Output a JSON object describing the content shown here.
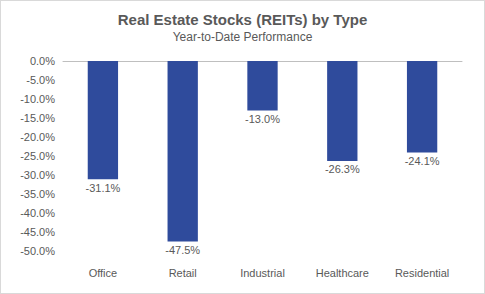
{
  "chart_data": {
    "type": "bar",
    "title": "Real Estate Stocks (REITs) by Type",
    "subtitle": "Year-to-Date Performance",
    "categories": [
      "Office",
      "Retail",
      "Industrial",
      "Healthcare",
      "Residential"
    ],
    "values": [
      -31.1,
      -47.5,
      -13.0,
      -26.3,
      -24.1
    ],
    "value_labels": [
      "-31.1%",
      "-47.5%",
      "-13.0%",
      "-26.3%",
      "-24.1%"
    ],
    "color": "#2f4b9c",
    "ylim": [
      -50,
      0
    ],
    "yticks": [
      {
        "value": -50,
        "label": "-50.0%"
      },
      {
        "value": -45,
        "label": "-45.0%"
      },
      {
        "value": -40,
        "label": "-40.0%"
      },
      {
        "value": -35,
        "label": "-35.0%"
      },
      {
        "value": -30,
        "label": "-30.0%"
      },
      {
        "value": -25,
        "label": "-25.0%"
      },
      {
        "value": -20,
        "label": "-20.0%"
      },
      {
        "value": -15,
        "label": "-15.0%"
      },
      {
        "value": -10,
        "label": "-10.0%"
      },
      {
        "value": -5,
        "label": "-5.0%"
      },
      {
        "value": 0,
        "label": "0.0%"
      }
    ],
    "grid": false,
    "data_labels": true
  }
}
